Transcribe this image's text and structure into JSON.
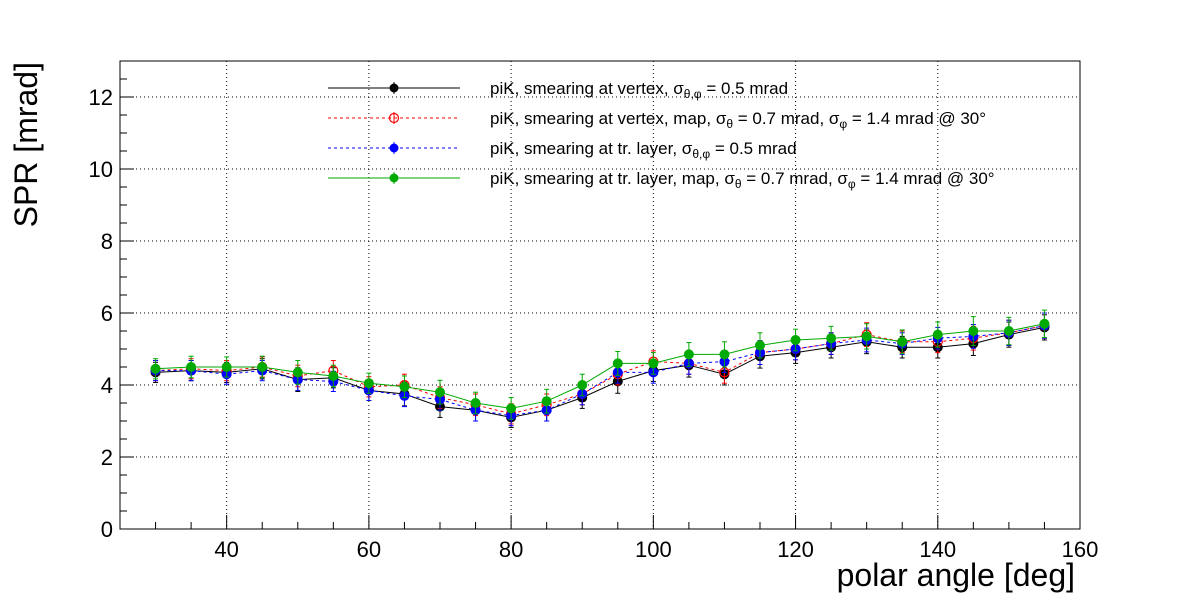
{
  "chart_data": {
    "type": "line",
    "title": "",
    "xlabel": "polar angle [deg]",
    "ylabel": "SPR [mrad]",
    "xlim": [
      25,
      160
    ],
    "ylim": [
      0,
      13
    ],
    "x_ticks": [
      "40",
      "60",
      "80",
      "100",
      "120",
      "140",
      "160"
    ],
    "y_ticks": [
      "0",
      "2",
      "4",
      "6",
      "8",
      "10",
      "12"
    ],
    "grid": true,
    "legend_position": "top",
    "x": [
      30,
      35,
      40,
      45,
      50,
      55,
      60,
      65,
      70,
      75,
      80,
      85,
      90,
      95,
      100,
      105,
      110,
      115,
      120,
      125,
      130,
      135,
      140,
      145,
      150,
      155
    ],
    "series": [
      {
        "legend_main": "piK, smearing at vertex, σ",
        "legend_sub": "θ,φ",
        "legend_rest": " = 0.5 mrad",
        "color": "#000000",
        "line_style": "solid",
        "marker": "filled-circle",
        "values": [
          4.35,
          4.4,
          4.35,
          4.45,
          4.15,
          4.2,
          3.85,
          3.75,
          3.4,
          3.3,
          3.1,
          3.3,
          3.65,
          4.1,
          4.4,
          4.55,
          4.3,
          4.8,
          4.9,
          5.05,
          5.2,
          5.05,
          5.05,
          5.15,
          5.4,
          5.6
        ],
        "errors": [
          0.28,
          0.28,
          0.28,
          0.28,
          0.33,
          0.28,
          0.28,
          0.33,
          0.3,
          0.3,
          0.28,
          0.3,
          0.3,
          0.33,
          0.3,
          0.33,
          0.3,
          0.33,
          0.3,
          0.3,
          0.33,
          0.3,
          0.3,
          0.33,
          0.35,
          0.35
        ]
      },
      {
        "legend_main": "piK, smearing at vertex, map, σ",
        "legend_sub": "θ",
        "legend_rest": " = 0.7 mrad,  σ",
        "legend_sub2": "φ",
        "legend_rest2": " = 1.4 mrad @ 30°",
        "color": "#ff0000",
        "line_style": "dashed",
        "marker": "open-circle",
        "values": [
          4.4,
          4.45,
          4.4,
          4.5,
          4.25,
          4.4,
          3.95,
          4.0,
          3.65,
          3.45,
          3.2,
          3.45,
          3.75,
          4.3,
          4.65,
          4.6,
          4.35,
          4.9,
          5.0,
          5.15,
          5.4,
          5.2,
          5.2,
          5.3,
          5.45,
          5.65
        ],
        "errors": [
          0.28,
          0.28,
          0.28,
          0.28,
          0.3,
          0.28,
          0.28,
          0.3,
          0.3,
          0.3,
          0.28,
          0.3,
          0.3,
          0.3,
          0.3,
          0.3,
          0.3,
          0.33,
          0.3,
          0.3,
          0.33,
          0.3,
          0.3,
          0.33,
          0.35,
          0.35
        ]
      },
      {
        "legend_main": "piK, smearing at tr. layer, σ",
        "legend_sub": "θ,φ",
        "legend_rest": " = 0.5 mrad",
        "color": "#0000ff",
        "line_style": "dashed",
        "marker": "filled-circle",
        "values": [
          4.4,
          4.4,
          4.3,
          4.4,
          4.15,
          4.1,
          3.85,
          3.7,
          3.6,
          3.3,
          3.15,
          3.3,
          3.75,
          4.35,
          4.35,
          4.6,
          4.65,
          4.9,
          5.0,
          5.15,
          5.25,
          5.15,
          5.3,
          5.35,
          5.45,
          5.65
        ],
        "errors": [
          0.28,
          0.28,
          0.28,
          0.28,
          0.3,
          0.28,
          0.28,
          0.3,
          0.3,
          0.3,
          0.28,
          0.3,
          0.3,
          0.3,
          0.3,
          0.3,
          0.3,
          0.33,
          0.3,
          0.3,
          0.33,
          0.3,
          0.3,
          0.33,
          0.35,
          0.35
        ]
      },
      {
        "legend_main": "piK, smearing at tr. layer, map, σ",
        "legend_sub": "θ",
        "legend_rest": " = 0.7 mrad,  σ",
        "legend_sub2": "φ",
        "legend_rest2": " = 1.4 mrad @ 30°",
        "color": "#00aa00",
        "line_style": "solid",
        "marker": "filled-circle",
        "values": [
          4.45,
          4.5,
          4.5,
          4.5,
          4.35,
          4.25,
          4.05,
          3.95,
          3.8,
          3.5,
          3.35,
          3.55,
          4.0,
          4.6,
          4.6,
          4.85,
          4.85,
          5.1,
          5.25,
          5.3,
          5.35,
          5.2,
          5.4,
          5.5,
          5.5,
          5.7
        ],
        "errors": [
          0.28,
          0.3,
          0.28,
          0.3,
          0.33,
          0.3,
          0.28,
          0.3,
          0.33,
          0.3,
          0.3,
          0.33,
          0.3,
          0.33,
          0.3,
          0.33,
          0.35,
          0.35,
          0.3,
          0.33,
          0.35,
          0.33,
          0.35,
          0.4,
          0.38,
          0.38
        ]
      }
    ]
  }
}
